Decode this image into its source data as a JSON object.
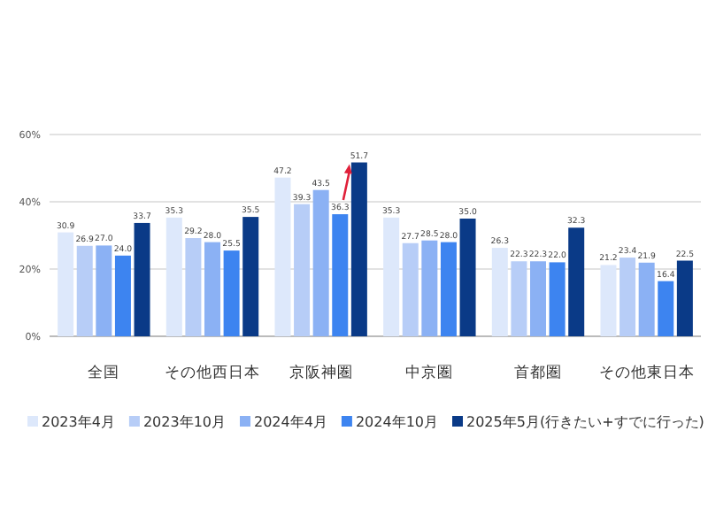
{
  "chart_data": {
    "type": "bar",
    "categories": [
      "全国",
      "その他西日本",
      "京阪神圏",
      "中京圏",
      "首都圏",
      "その他東日本"
    ],
    "series": [
      {
        "name": "2023年4月",
        "color": "#dde8fb",
        "values": [
          30.9,
          35.3,
          47.2,
          35.3,
          26.3,
          21.2
        ],
        "value_labels": [
          "30.9",
          "35.3",
          "47.2",
          "35.3",
          "26.3",
          "21.2"
        ]
      },
      {
        "name": "2023年10月",
        "color": "#b7cdf7",
        "values": [
          26.9,
          29.2,
          39.3,
          27.7,
          22.3,
          23.4
        ],
        "value_labels": [
          "26.9",
          "29.2",
          "39.3",
          "27.7",
          "22.3",
          "23.4"
        ]
      },
      {
        "name": "2024年4月",
        "color": "#8bb1f4",
        "values": [
          27.0,
          28.0,
          43.5,
          28.5,
          22.3,
          21.9
        ],
        "value_labels": [
          "27.0",
          "28.0",
          "43.5",
          "28.5",
          "22.3",
          "21.9"
        ]
      },
      {
        "name": "2024年10月",
        "color": "#3d84f0",
        "values": [
          24.0,
          25.5,
          36.3,
          28.0,
          22.0,
          16.4
        ],
        "value_labels": [
          "24.0",
          "25.5",
          "36.3",
          "28.0",
          "22.0",
          "16.4"
        ]
      },
      {
        "name": "2025年5月(行きたい+すでに行った)",
        "color": "#0a3a87",
        "values": [
          33.7,
          35.5,
          51.7,
          35.0,
          32.3,
          22.5
        ],
        "value_labels": [
          "33.7",
          "35.5",
          "51.7",
          "35.0",
          "32.3",
          "22.5"
        ]
      }
    ],
    "ylim": [
      0,
      60
    ],
    "yticks": [
      {
        "value": 0,
        "label": "0%"
      },
      {
        "value": 20,
        "label": "20%"
      },
      {
        "value": 40,
        "label": "40%"
      },
      {
        "value": 60,
        "label": "60%"
      }
    ],
    "grid": "y",
    "legend": "bottom"
  }
}
